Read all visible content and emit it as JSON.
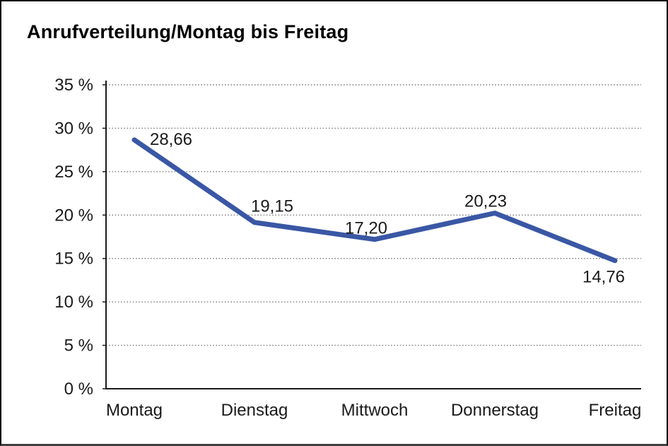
{
  "window": {
    "title": "Anrufverteilung/Montag bis Freitag"
  },
  "chart_data": {
    "type": "line",
    "title": "Anrufverteilung/Montag bis Freitag",
    "categories": [
      "Montag",
      "Dienstag",
      "Mittwoch",
      "Donnerstag",
      "Freitag"
    ],
    "values": [
      28.66,
      19.15,
      17.2,
      20.23,
      14.76
    ],
    "point_labels": [
      "28,66",
      "19,15",
      "17,20",
      "20,23",
      "14,76"
    ],
    "xlabel": "",
    "ylabel": "",
    "ylim": [
      0,
      35
    ],
    "ytick_step": 5,
    "ytick_labels": [
      "0 %",
      "5 %",
      "10 %",
      "15 %",
      "20 %",
      "25 %",
      "30 %",
      "35 %"
    ],
    "grid": "horizontal-dotted",
    "legend": "none",
    "series_color": "#3A57A5"
  },
  "colors": {
    "background": "#FFFFFF",
    "frame_border": "#0A0A0A",
    "axis": "#1A1A1A",
    "gridline": "#7F7F7F",
    "text": "#1A1A1A",
    "series_line": "#3A57A5"
  }
}
